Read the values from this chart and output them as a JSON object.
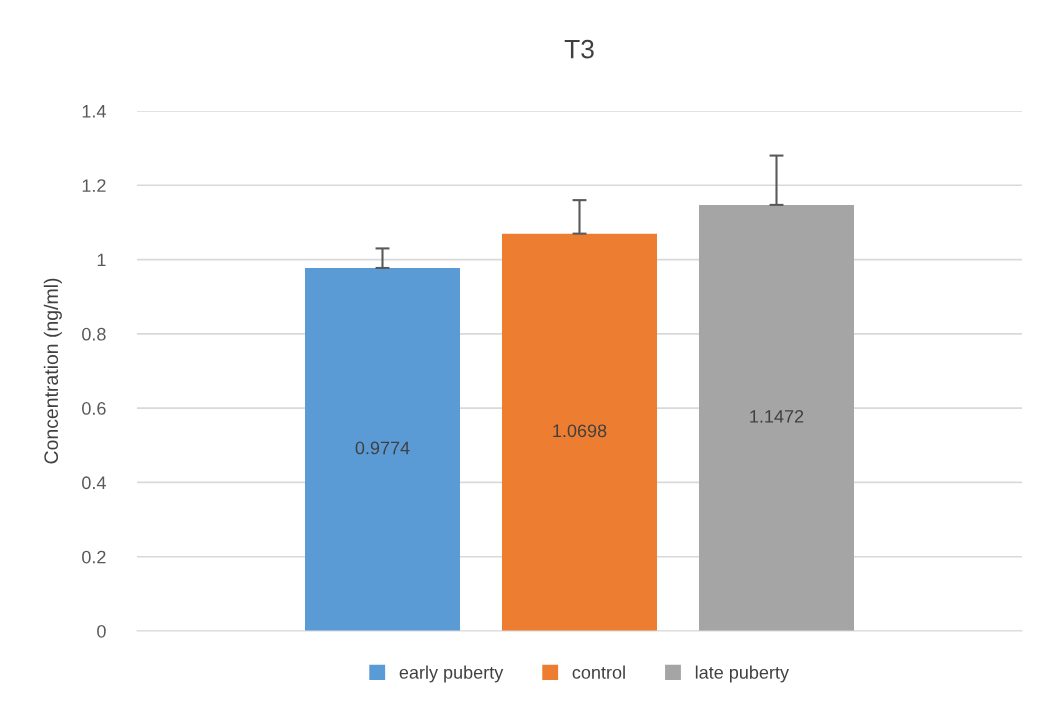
{
  "chart_data": {
    "type": "bar",
    "title": "T3",
    "ylabel": "Concentration (ng/ml)",
    "categories": [
      null
    ],
    "series": [
      {
        "name": "early puberty",
        "color": "#5b9bd5",
        "values": [
          0.9774
        ],
        "errors": [
          [
            0.9774,
            1.03
          ]
        ]
      },
      {
        "name": "control",
        "color": "#ed7d31",
        "values": [
          1.0698
        ],
        "errors": [
          [
            1.0698,
            1.16
          ]
        ]
      },
      {
        "name": "late puberty",
        "color": "#a5a5a5",
        "values": [
          1.1472
        ],
        "errors": [
          [
            1.1472,
            1.28
          ]
        ]
      }
    ],
    "ylim": [
      0,
      1.4
    ],
    "yticks": [
      {
        "value": 0,
        "label": "0"
      },
      0.2,
      0.4,
      0.6,
      0.8,
      {
        "value": 1,
        "label": "1"
      },
      1.2,
      1.4
    ],
    "data_labels": true,
    "grid": "y",
    "legend": "bottom"
  }
}
